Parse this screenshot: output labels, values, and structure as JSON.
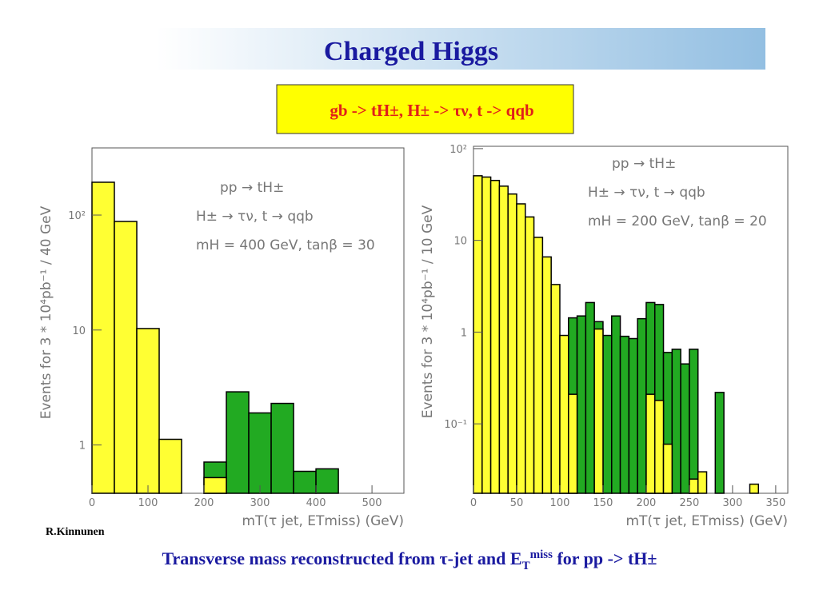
{
  "slide": {
    "title": "Charged Higgs",
    "subtitle": "gb -> tH±, H± -> τν, t -> qqb",
    "author": "R.Kinnunen",
    "caption": [
      "Transverse mass reconstructed from τ-jet and E",
      "T",
      "miss",
      " for pp -> tH±"
    ]
  },
  "chart_data": [
    {
      "type": "histogram",
      "ylog": true,
      "xlabel": "mT(τ jet, ETmiss) (GeV)",
      "ylabel": "Events for 3 * 10⁴pb⁻¹ / 40 GeV",
      "annotations": [
        "pp → tH±",
        "H± → τν, t → qqb",
        "mH = 400 GeV, tanβ = 30"
      ],
      "bins": [
        0,
        40,
        80,
        120,
        160,
        200,
        240,
        280,
        320,
        360,
        400,
        440
      ],
      "series": [
        {
          "color": "#22aa22",
          "values": [
            null,
            null,
            null,
            null,
            null,
            0.71,
            2.9,
            1.9,
            2.3,
            0.59,
            0.62
          ]
        },
        {
          "color": "#ffff33",
          "values": [
            193,
            88,
            10.3,
            1.12,
            null,
            0.52,
            null,
            null,
            null,
            null,
            null
          ]
        }
      ],
      "xlim": [
        0,
        557
      ],
      "xticks": [
        0,
        100,
        200,
        300,
        400,
        500
      ],
      "ylim": [
        0.38,
        384
      ],
      "yticks": [
        1,
        10,
        {
          "value": 100,
          "label": "10²"
        }
      ]
    },
    {
      "type": "histogram",
      "ylog": true,
      "xlabel": "mT(τ jet, ETmiss) (GeV)",
      "ylabel": "Events for 3 * 10⁴pb⁻¹ / 10 GeV",
      "annotations": [
        "pp → tH±",
        "H± → τν, t → qqb",
        "mH = 200 GeV, tanβ = 20"
      ],
      "bins": [
        0,
        10,
        20,
        30,
        40,
        50,
        60,
        70,
        80,
        90,
        100,
        110,
        120,
        130,
        140,
        150,
        160,
        170,
        180,
        190,
        200,
        210,
        220,
        230,
        240,
        250,
        260,
        270,
        280,
        290,
        300,
        310,
        320,
        330
      ],
      "series": [
        {
          "color": "#22aa22",
          "values": [
            null,
            null,
            null,
            null,
            null,
            null,
            null,
            null,
            null,
            null,
            0.36,
            1.43,
            1.5,
            2.1,
            1.3,
            0.92,
            1.5,
            0.9,
            0.85,
            1.4,
            2.1,
            2.0,
            0.6,
            0.65,
            0.45,
            0.65,
            null,
            null,
            0.22,
            null,
            null,
            null,
            null
          ]
        },
        {
          "color": "#ffff33",
          "values": [
            50.6,
            49,
            45,
            39,
            32,
            25,
            18,
            10.8,
            6.6,
            3.3,
            0.92,
            0.21,
            null,
            null,
            1.08,
            null,
            null,
            null,
            null,
            null,
            0.21,
            0.18,
            0.06,
            null,
            null,
            0.025,
            0.03,
            null,
            null,
            null,
            null,
            null,
            0.022
          ]
        }
      ],
      "xlim": [
        0,
        364
      ],
      "xticks": [
        0,
        50,
        100,
        150,
        200,
        250,
        300,
        350
      ],
      "ylim": [
        0.0175,
        106
      ],
      "yticks": [
        {
          "value": 0.1,
          "label": "10⁻¹"
        },
        1,
        10,
        {
          "value": 100,
          "label": "10²"
        }
      ]
    }
  ]
}
